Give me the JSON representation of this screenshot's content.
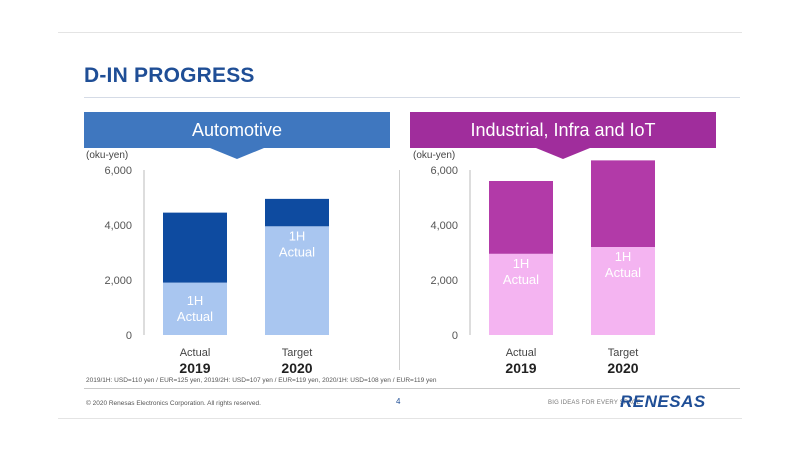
{
  "title": "D-IN PROGRESS",
  "colors": {
    "title": "#1f4e96",
    "automotive_banner": "#3f77bf",
    "automotive_total": "#0e4ba0",
    "automotive_1h": "#a9c6f0",
    "industrial_banner": "#a02d9c",
    "industrial_total": "#b23aa8",
    "industrial_1h": "#f4b4f1"
  },
  "chart_data": [
    {
      "type": "bar",
      "title": "Automotive",
      "ylabel": "(oku-yen)",
      "ylim": [
        0,
        6000
      ],
      "yticks": [
        0,
        2000,
        4000,
        6000
      ],
      "ytick_labels": [
        "0",
        "2,000",
        "4,000",
        "6,000"
      ],
      "categories": [
        "Actual",
        "Target"
      ],
      "category_years": [
        "2019",
        "2020"
      ],
      "series": [
        {
          "name": "1H Actual",
          "values": [
            1900,
            3950
          ]
        },
        {
          "name": "",
          "values": [
            4450,
            4950
          ]
        }
      ],
      "inbar_label_line1": "1H",
      "inbar_label_line2": "Actual"
    },
    {
      "type": "bar",
      "title": "Industrial, Infra and IoT",
      "ylabel": "(oku-yen)",
      "ylim": [
        0,
        6000
      ],
      "yticks": [
        0,
        2000,
        4000,
        6000
      ],
      "ytick_labels": [
        "0",
        "2,000",
        "4,000",
        "6,000"
      ],
      "categories": [
        "Actual",
        "Target"
      ],
      "category_years": [
        "2019",
        "2020"
      ],
      "series": [
        {
          "name": "1H Actual",
          "values": [
            2950,
            3200
          ]
        },
        {
          "name": "",
          "values": [
            5600,
            6350
          ]
        }
      ],
      "inbar_label_line1": "1H",
      "inbar_label_line2": "Actual"
    }
  ],
  "footnote": "2019/1H: USD=110 yen / EUR=125 yen, 2019/2H: USD=107 yen / EUR=119 yen, 2020/1H: USD=108 yen / EUR=119 yen",
  "footer": {
    "copyright": "© 2020 Renesas Electronics Corporation. All rights reserved.",
    "page_number": "4",
    "tagline": "BIG IDEAS FOR EVERY SPACE",
    "logo": "RENESAS"
  }
}
